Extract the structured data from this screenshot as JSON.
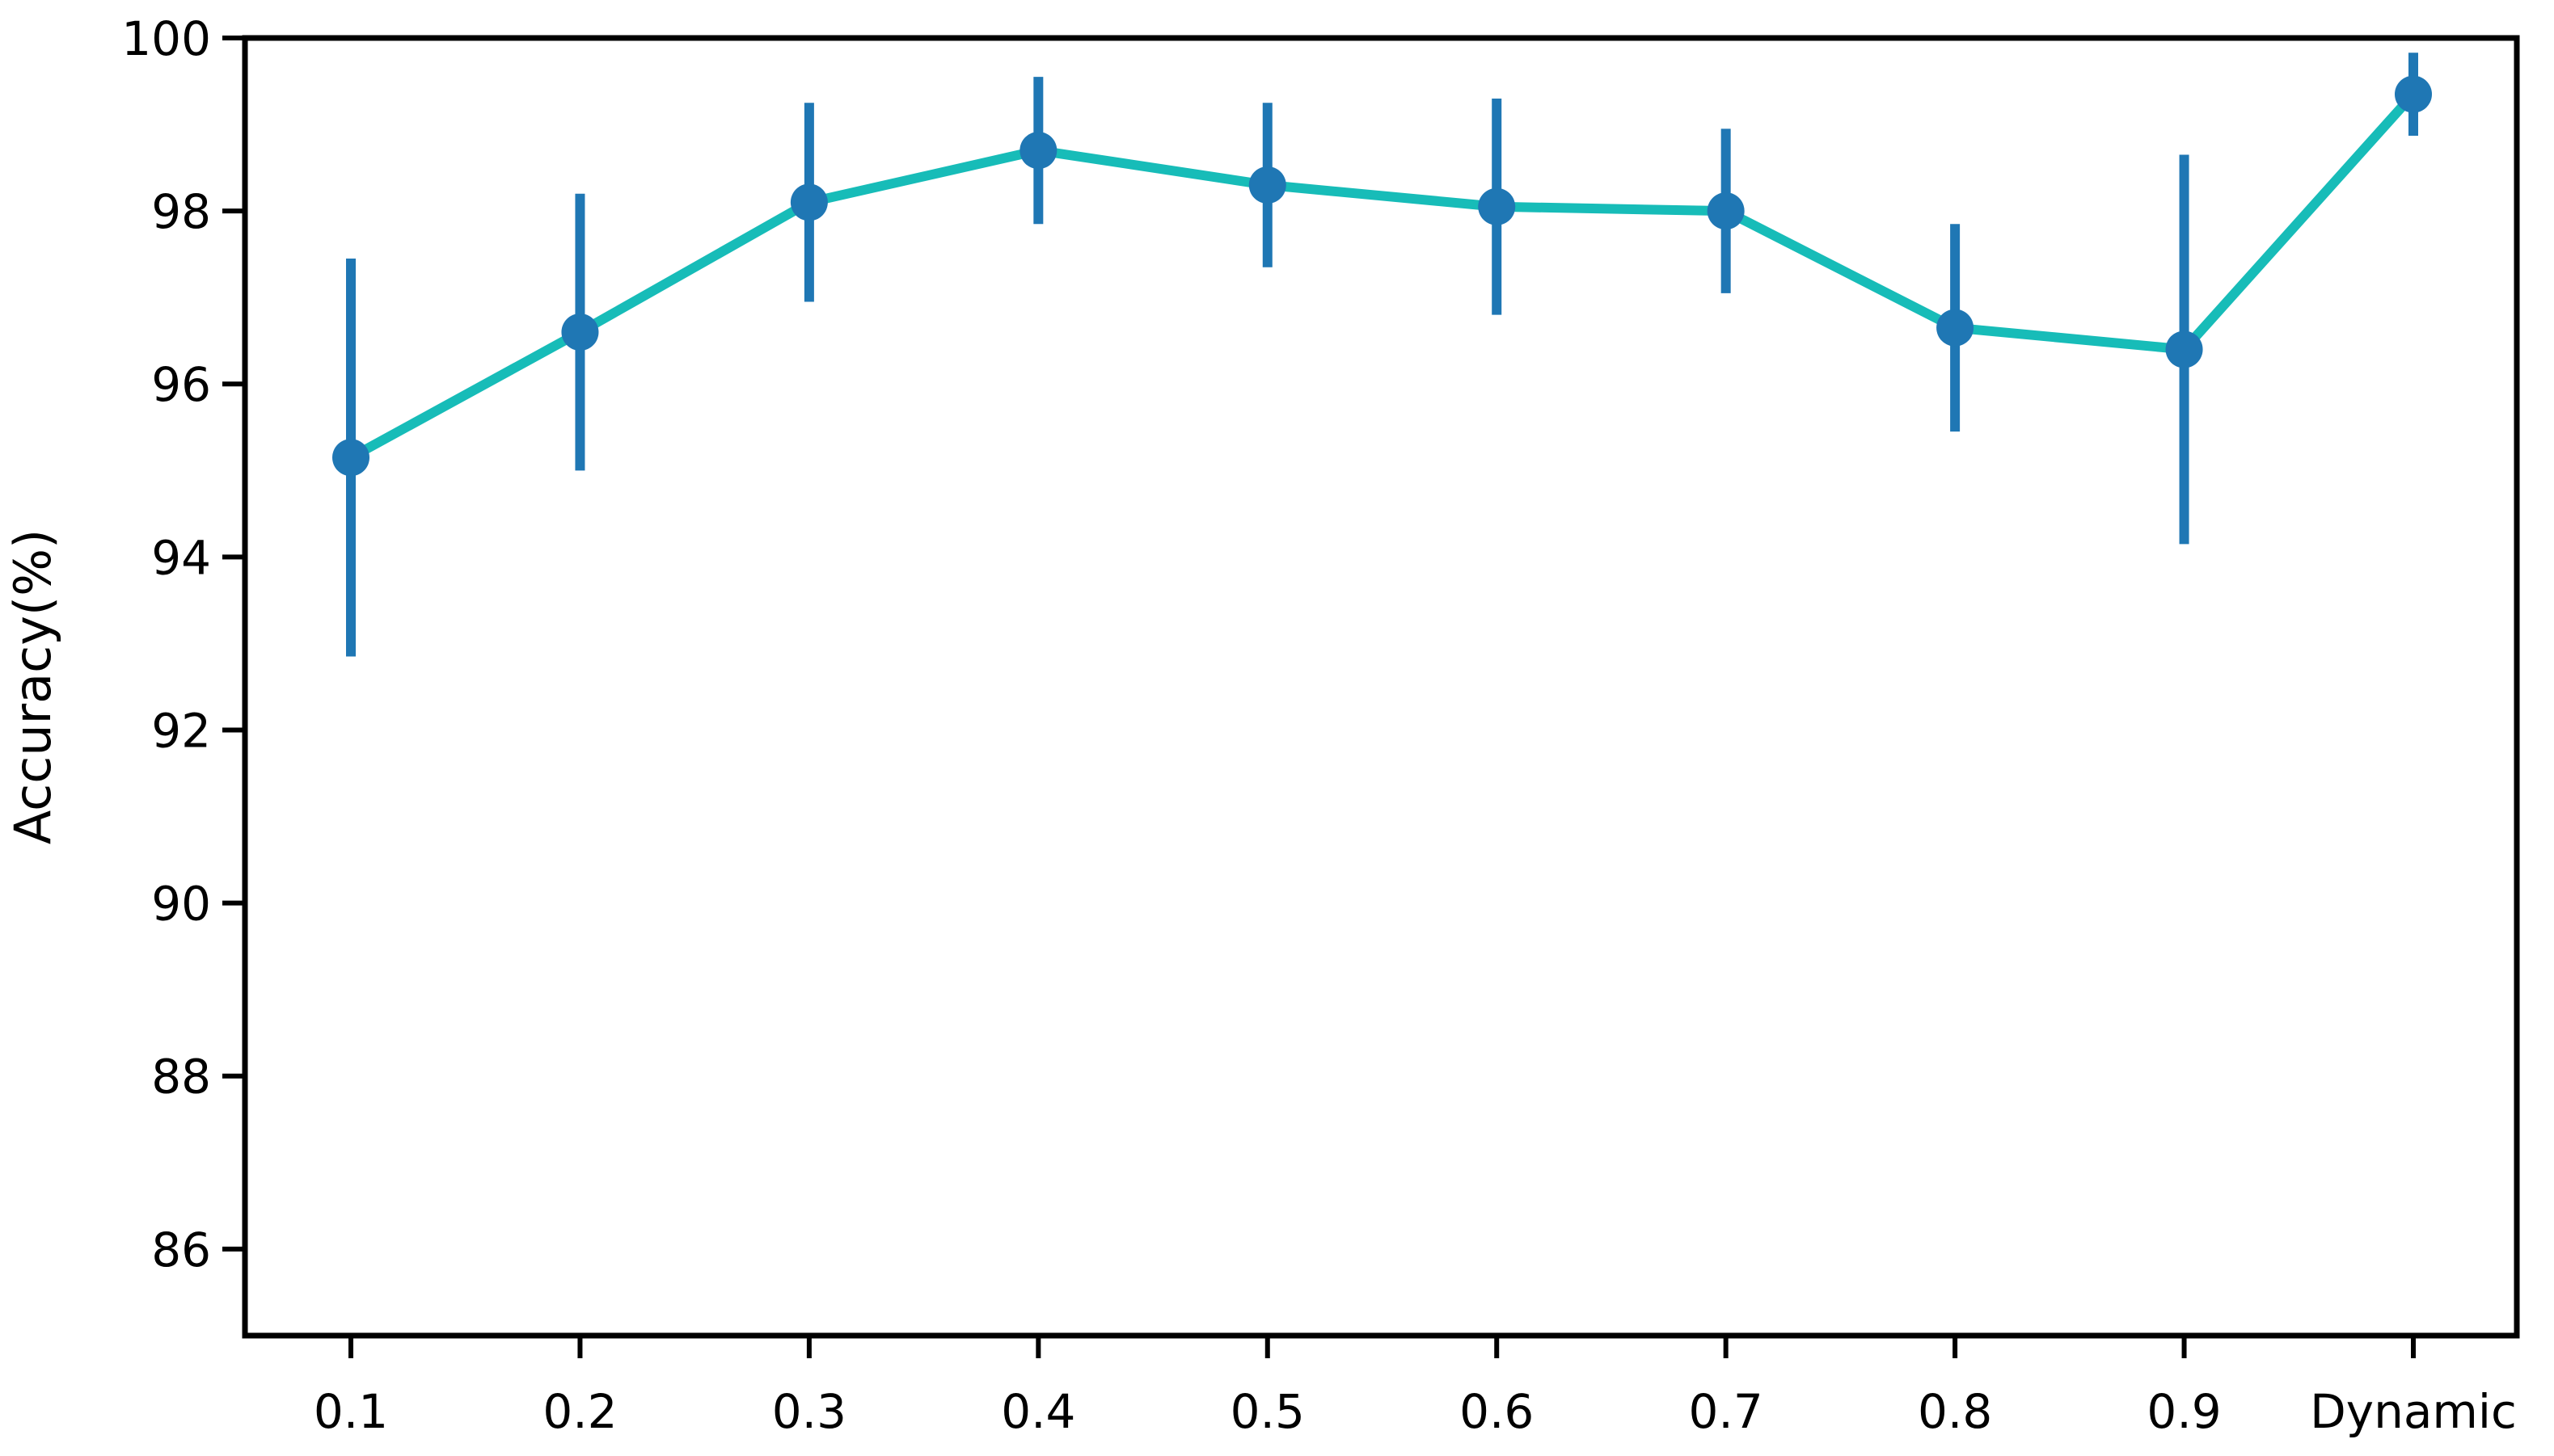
{
  "chart_data": {
    "type": "line",
    "title": "",
    "xlabel": "",
    "ylabel": "Accuracy(%)",
    "categories": [
      "0.1",
      "0.2",
      "0.3",
      "0.4",
      "0.5",
      "0.6",
      "0.7",
      "0.8",
      "0.9",
      "Dynamic"
    ],
    "series": [
      {
        "name": "Accuracy",
        "values": [
          95.15,
          96.6,
          98.1,
          98.7,
          98.3,
          98.05,
          98.0,
          96.65,
          96.4,
          99.35
        ],
        "error": [
          2.3,
          1.6,
          1.15,
          0.85,
          0.95,
          1.25,
          0.95,
          1.2,
          2.25,
          0.48
        ]
      }
    ],
    "ylim": [
      85,
      100
    ],
    "yticks": [
      86,
      88,
      90,
      92,
      94,
      96,
      98,
      100
    ],
    "grid": false,
    "legend": "none",
    "colors": {
      "line": "#17bcb8",
      "marker": "#1f77b4",
      "error_bar": "#1f77b4",
      "axis": "#000000",
      "background": "#ffffff"
    }
  }
}
